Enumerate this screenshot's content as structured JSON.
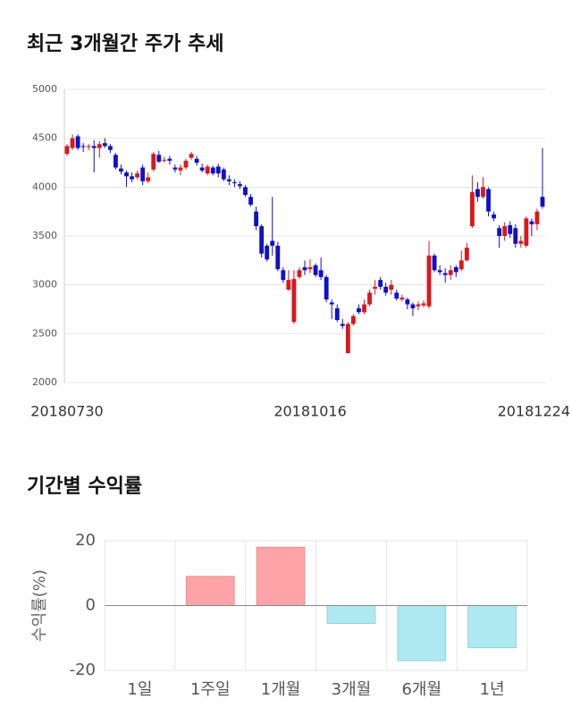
{
  "chart_data": [
    {
      "type": "candlestick",
      "title": "최근 3개월간 주가 추세",
      "categories": [
        "20180730",
        null,
        null,
        null,
        null,
        null,
        null,
        null,
        null,
        null,
        null,
        null,
        null,
        null,
        null,
        null,
        null,
        null,
        null,
        null,
        null,
        null,
        null,
        null,
        null,
        null,
        null,
        null,
        null,
        null,
        null,
        null,
        null,
        null,
        null,
        null,
        null,
        null,
        null,
        null,
        null,
        null,
        null,
        null,
        null,
        "20181016",
        null,
        null,
        null,
        null,
        null,
        null,
        null,
        null,
        null,
        null,
        null,
        null,
        null,
        null,
        null,
        null,
        null,
        null,
        null,
        null,
        null,
        null,
        null,
        null,
        null,
        null,
        null,
        null,
        null,
        null,
        null,
        null,
        null,
        null,
        null,
        null,
        null,
        null,
        null,
        null,
        null,
        null,
        "20181224"
      ],
      "open": [
        4340,
        4400,
        4520,
        4420,
        4410,
        4420,
        4400,
        4450,
        4420,
        4330,
        4190,
        4150,
        4110,
        4100,
        4200,
        4060,
        4180,
        4330,
        4270,
        4290,
        4200,
        4170,
        4200,
        4300,
        4290,
        4200,
        4140,
        4200,
        4210,
        4180,
        4080,
        4050,
        4030,
        4000,
        3900,
        3750,
        3600,
        3400,
        3450,
        3400,
        3150,
        2950,
        2620,
        3080,
        3180,
        3160,
        3200,
        3150,
        3080,
        2820,
        2760,
        2600,
        2300,
        2600,
        2760,
        2720,
        2800,
        2960,
        3050,
        2980,
        2950,
        2920,
        2850,
        2850,
        2800,
        2780,
        2790,
        2780,
        3300,
        3150,
        3120,
        3100,
        3180,
        3160,
        3250,
        3600,
        3980,
        3900,
        3980,
        3720,
        3580,
        3500,
        3610,
        3580,
        3420,
        3400,
        3650,
        3620,
        3900
      ],
      "high": [
        4440,
        4540,
        4540,
        4450,
        4440,
        4480,
        4470,
        4500,
        4440,
        4350,
        4230,
        4170,
        4150,
        4170,
        4230,
        4150,
        4360,
        4370,
        4310,
        4320,
        4230,
        4230,
        4290,
        4360,
        4320,
        4240,
        4230,
        4220,
        4240,
        4200,
        4120,
        4080,
        4060,
        4020,
        3930,
        3800,
        3620,
        3420,
        3900,
        3440,
        3180,
        3150,
        3150,
        3180,
        3250,
        3260,
        3220,
        3280,
        3100,
        2850,
        2800,
        2650,
        2620,
        2700,
        2800,
        2850,
        2950,
        3050,
        3080,
        3020,
        3050,
        2950,
        2900,
        2870,
        2820,
        2830,
        2840,
        3450,
        3320,
        3200,
        3170,
        3200,
        3200,
        3350,
        3430,
        4120,
        4050,
        4100,
        4000,
        3750,
        3610,
        3640,
        3650,
        3620,
        3500,
        3700,
        3680,
        3780,
        4400
      ],
      "low": [
        4320,
        4380,
        4380,
        4360,
        4380,
        4150,
        4300,
        4400,
        4350,
        4180,
        4130,
        4000,
        4050,
        4080,
        4020,
        4040,
        4160,
        4250,
        4250,
        4230,
        4150,
        4120,
        4180,
        4280,
        4220,
        4150,
        4120,
        4120,
        4100,
        4060,
        4020,
        4000,
        3980,
        3900,
        3800,
        3560,
        3280,
        3240,
        3300,
        3140,
        3020,
        2940,
        2600,
        3060,
        3100,
        3120,
        3080,
        3050,
        2820,
        2650,
        2620,
        2550,
        2300,
        2580,
        2700,
        2700,
        2780,
        2900,
        2950,
        2890,
        2900,
        2840,
        2830,
        2750,
        2680,
        2740,
        2770,
        2760,
        3130,
        3100,
        3020,
        3050,
        3080,
        3140,
        3240,
        3580,
        3850,
        3880,
        3700,
        3650,
        3380,
        3450,
        3480,
        3380,
        3380,
        3380,
        3500,
        3560,
        3780
      ],
      "close": [
        4420,
        4500,
        4400,
        4410,
        4420,
        4400,
        4440,
        4420,
        4380,
        4200,
        4160,
        4110,
        4080,
        4140,
        4060,
        4100,
        4340,
        4260,
        4280,
        4270,
        4180,
        4200,
        4270,
        4340,
        4250,
        4170,
        4210,
        4140,
        4140,
        4080,
        4060,
        4040,
        4010,
        3920,
        3820,
        3600,
        3320,
        3260,
        3400,
        3160,
        3050,
        3050,
        3060,
        3150,
        3150,
        3180,
        3100,
        3080,
        2850,
        2800,
        2640,
        2580,
        2600,
        2680,
        2720,
        2800,
        2920,
        2980,
        2980,
        2920,
        3000,
        2860,
        2870,
        2800,
        2760,
        2800,
        2810,
        3300,
        3150,
        3130,
        3100,
        3150,
        3130,
        3250,
        3380,
        3950,
        3900,
        4000,
        3750,
        3680,
        3500,
        3600,
        3520,
        3420,
        3450,
        3680,
        3620,
        3750,
        3800
      ],
      "up_color": "#d7191c",
      "down_color": "#1010c8",
      "ylim": [
        2000,
        5000
      ],
      "yticks": [
        2000,
        2500,
        3000,
        3500,
        4000,
        4500,
        5000
      ],
      "grid": true
    },
    {
      "type": "bar",
      "title": "기간별 수익률",
      "ylabel": "수익률(%)",
      "categories": [
        "1일",
        "1주일",
        "1개월",
        "3개월",
        "6개월",
        "1년"
      ],
      "values": [
        0,
        9,
        18,
        -5.5,
        -17,
        -13
      ],
      "positive_color": "#ffa3a6",
      "negative_color": "#aee9f2",
      "ylim": [
        -20,
        20
      ],
      "yticks": [
        -20,
        0,
        20
      ],
      "grid": true
    }
  ]
}
